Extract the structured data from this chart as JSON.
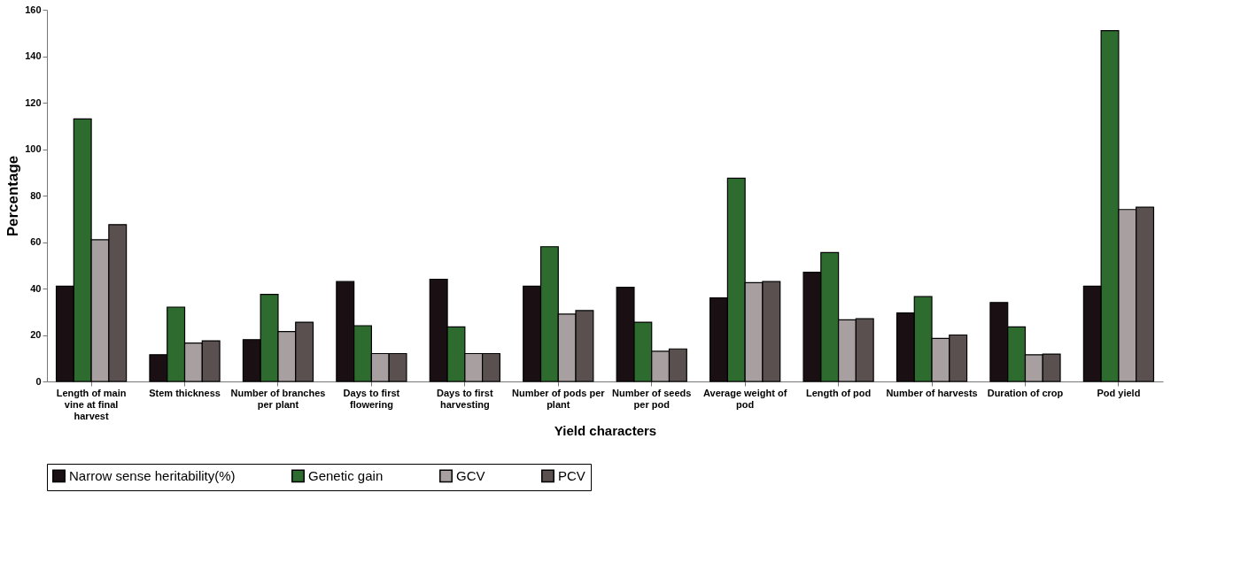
{
  "chart_data": {
    "type": "bar",
    "xlabel": "Yield characters",
    "ylabel": "Percentage",
    "categories": [
      "Length of main vine at final harvest",
      "Stem thickness",
      "Number of branches per plant",
      "Days to first flowering",
      "Days to first harvesting",
      "Number of pods per plant",
      "Number of seeds per pod",
      "Average weight of pod",
      "Length of pod",
      "Number of harvests",
      "Duration of crop",
      "Pod yield"
    ],
    "series": [
      {
        "name": "Narrow sense heritability(%)",
        "color": "#1a1014",
        "values": [
          41,
          11.5,
          18,
          43,
          44,
          41,
          40.5,
          36,
          47,
          29.5,
          34,
          41
        ]
      },
      {
        "name": "Genetic gain",
        "color": "#2e6b2e",
        "values": [
          113,
          32,
          37.5,
          24,
          23.5,
          58,
          25.5,
          87.5,
          55.5,
          36.5,
          23.5,
          151
        ]
      },
      {
        "name": "GCV",
        "color": "#a8a0a0",
        "values": [
          61,
          16.5,
          21.5,
          12,
          12,
          29,
          13,
          42.5,
          26.5,
          18.5,
          11.5,
          74
        ]
      },
      {
        "name": "PCV",
        "color": "#5a5050",
        "values": [
          67.5,
          17.5,
          25.5,
          12,
          12,
          30.5,
          14,
          43,
          27,
          20,
          11.8,
          75
        ]
      }
    ],
    "ylim": [
      0,
      160
    ],
    "yticks": [
      0,
      20,
      40,
      60,
      80,
      100,
      120,
      140,
      160
    ],
    "grid": false,
    "legend": "bottom"
  }
}
